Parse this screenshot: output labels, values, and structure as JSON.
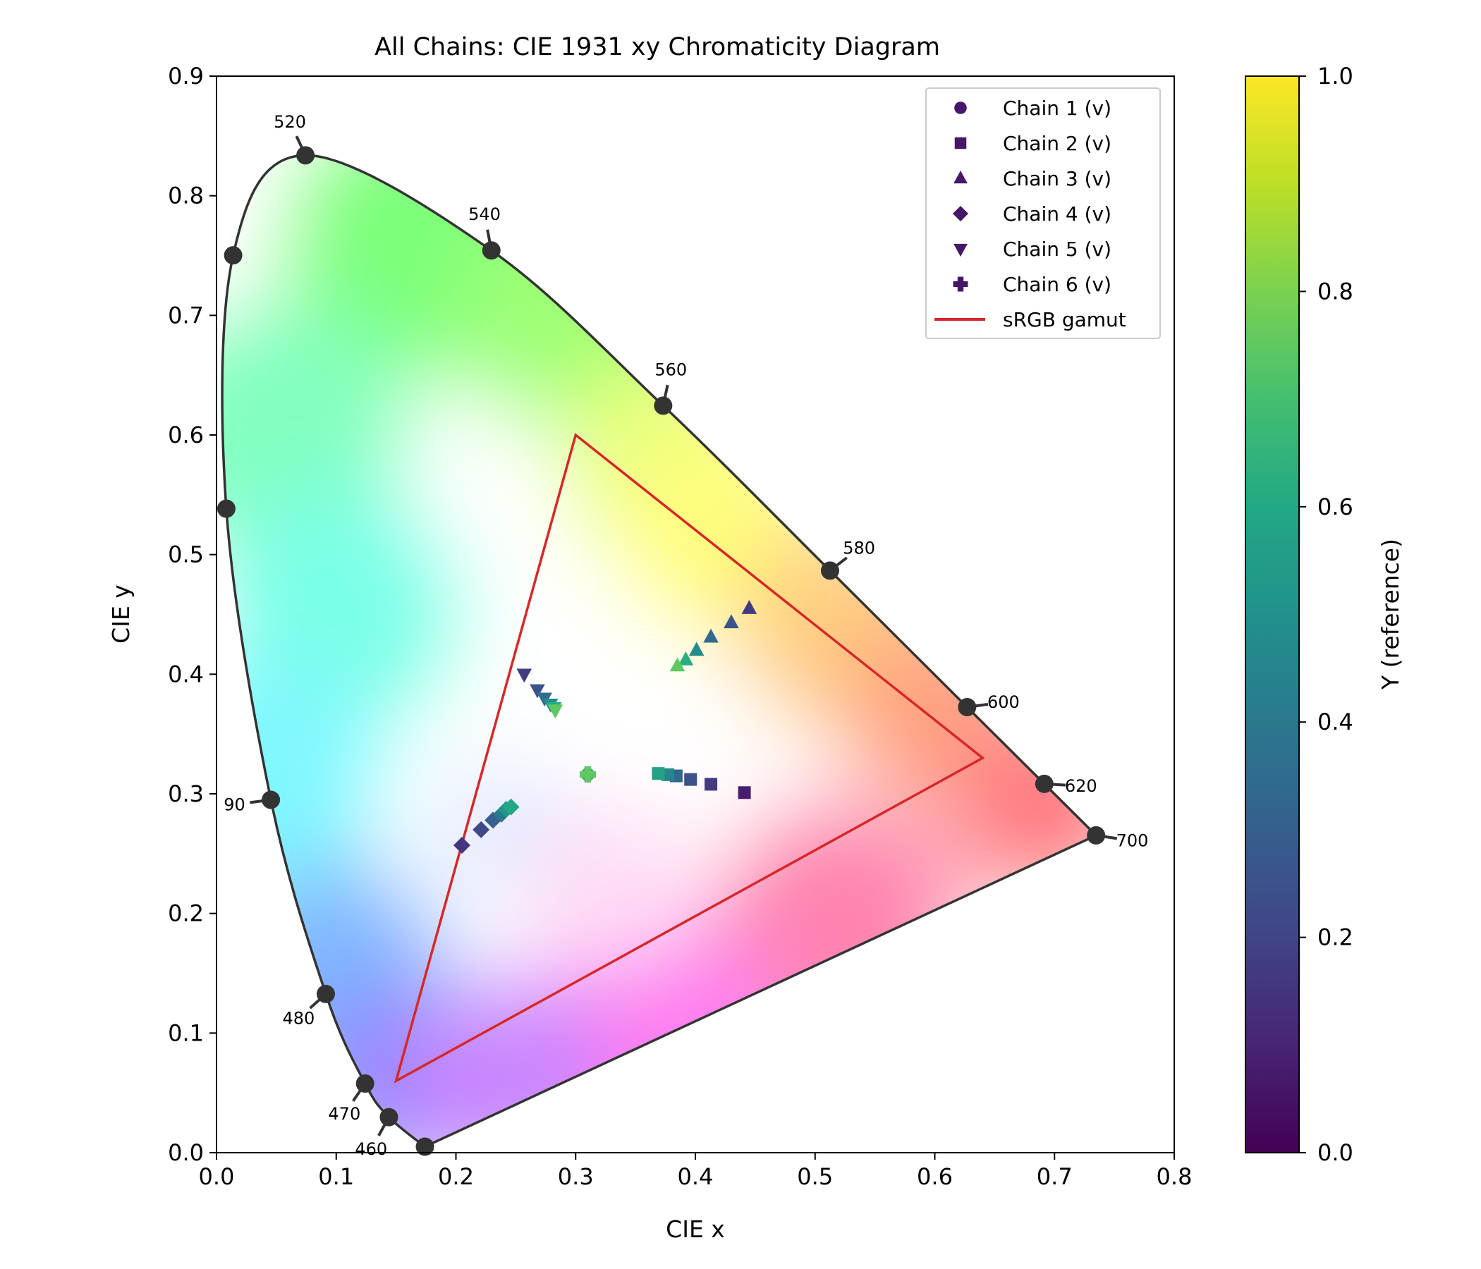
{
  "chart_data": {
    "type": "scatter",
    "title": "All Chains: CIE 1931 xy Chromaticity Diagram",
    "xlabel": "CIE x",
    "ylabel": "CIE y",
    "xlim": [
      0.0,
      0.8
    ],
    "ylim": [
      0.0,
      0.9
    ],
    "xticks": [
      "0.0",
      "0.1",
      "0.2",
      "0.3",
      "0.4",
      "0.5",
      "0.6",
      "0.7",
      "0.8"
    ],
    "yticks": [
      "0.0",
      "0.1",
      "0.2",
      "0.3",
      "0.4",
      "0.5",
      "0.6",
      "0.7",
      "0.8",
      "0.9"
    ],
    "grid": false,
    "legend_position": "top-right",
    "colorbar": {
      "label": "Y (reference)",
      "range": [
        0.0,
        1.0
      ],
      "ticks": [
        "0.0",
        "0.2",
        "0.4",
        "0.6",
        "0.8",
        "1.0"
      ],
      "colormap": "viridis"
    },
    "spectral_locus": [
      [
        0.1741,
        0.005
      ],
      [
        0.144,
        0.0297
      ],
      [
        0.1241,
        0.0578
      ],
      [
        0.0913,
        0.1327
      ],
      [
        0.0454,
        0.295
      ],
      [
        0.0082,
        0.5384
      ],
      [
        0.0139,
        0.7502
      ],
      [
        0.0743,
        0.8338
      ],
      [
        0.2296,
        0.7543
      ],
      [
        0.3731,
        0.6245
      ],
      [
        0.5125,
        0.4866
      ],
      [
        0.627,
        0.3725
      ],
      [
        0.6915,
        0.3083
      ],
      [
        0.7347,
        0.2653
      ]
    ],
    "wavelength_markers": [
      {
        "x": 0.144,
        "y": 0.0297,
        "label": "460"
      },
      {
        "x": 0.1241,
        "y": 0.0578,
        "label": "470"
      },
      {
        "x": 0.0913,
        "y": 0.1327,
        "label": "480"
      },
      {
        "x": 0.0454,
        "y": 0.295,
        "label": "90"
      },
      {
        "x": 0.0743,
        "y": 0.8338,
        "label": "520"
      },
      {
        "x": 0.2296,
        "y": 0.7543,
        "label": "540"
      },
      {
        "x": 0.3731,
        "y": 0.6245,
        "label": "560"
      },
      {
        "x": 0.5125,
        "y": 0.4866,
        "label": "580"
      },
      {
        "x": 0.627,
        "y": 0.3725,
        "label": "600"
      },
      {
        "x": 0.6915,
        "y": 0.3083,
        "label": "620"
      },
      {
        "x": 0.7347,
        "y": 0.2653,
        "label": "700"
      }
    ],
    "unlabeled_locus_markers": [
      {
        "x": 0.1741,
        "y": 0.005
      },
      {
        "x": 0.0082,
        "y": 0.5384
      },
      {
        "x": 0.0139,
        "y": 0.7502
      }
    ],
    "srgb_gamut": {
      "label": "sRGB gamut",
      "color": "#d62728",
      "points": [
        [
          0.64,
          0.33
        ],
        [
          0.3,
          0.6
        ],
        [
          0.15,
          0.06
        ]
      ]
    },
    "series": [
      {
        "name": "Chain 1 (v)",
        "marker": "circle",
        "points": [
          {
            "x": 0.3101,
            "y": 0.3162,
            "Y": 0.05
          },
          {
            "x": 0.3101,
            "y": 0.3162,
            "Y": 0.65
          }
        ]
      },
      {
        "name": "Chain 2 (v)",
        "marker": "square",
        "points": [
          {
            "x": 0.441,
            "y": 0.301,
            "Y": 0.08
          },
          {
            "x": 0.413,
            "y": 0.308,
            "Y": 0.17
          },
          {
            "x": 0.396,
            "y": 0.312,
            "Y": 0.25
          },
          {
            "x": 0.384,
            "y": 0.315,
            "Y": 0.33
          },
          {
            "x": 0.377,
            "y": 0.316,
            "Y": 0.45
          },
          {
            "x": 0.369,
            "y": 0.317,
            "Y": 0.58
          }
        ]
      },
      {
        "name": "Chain 3 (v)",
        "marker": "triangle-up",
        "points": [
          {
            "x": 0.445,
            "y": 0.455,
            "Y": 0.17
          },
          {
            "x": 0.43,
            "y": 0.443,
            "Y": 0.25
          },
          {
            "x": 0.413,
            "y": 0.431,
            "Y": 0.35
          },
          {
            "x": 0.401,
            "y": 0.42,
            "Y": 0.48
          },
          {
            "x": 0.392,
            "y": 0.412,
            "Y": 0.62
          },
          {
            "x": 0.385,
            "y": 0.407,
            "Y": 0.75
          }
        ]
      },
      {
        "name": "Chain 4 (v)",
        "marker": "diamond",
        "points": [
          {
            "x": 0.205,
            "y": 0.257,
            "Y": 0.15
          },
          {
            "x": 0.221,
            "y": 0.27,
            "Y": 0.22
          },
          {
            "x": 0.231,
            "y": 0.278,
            "Y": 0.3
          },
          {
            "x": 0.238,
            "y": 0.283,
            "Y": 0.4
          },
          {
            "x": 0.242,
            "y": 0.287,
            "Y": 0.52
          },
          {
            "x": 0.246,
            "y": 0.289,
            "Y": 0.6
          }
        ]
      },
      {
        "name": "Chain 5 (v)",
        "marker": "triangle-down",
        "points": [
          {
            "x": 0.257,
            "y": 0.4,
            "Y": 0.18
          },
          {
            "x": 0.268,
            "y": 0.387,
            "Y": 0.25
          },
          {
            "x": 0.274,
            "y": 0.38,
            "Y": 0.35
          },
          {
            "x": 0.279,
            "y": 0.375,
            "Y": 0.48
          },
          {
            "x": 0.282,
            "y": 0.372,
            "Y": 0.62
          },
          {
            "x": 0.283,
            "y": 0.37,
            "Y": 0.75
          }
        ]
      },
      {
        "name": "Chain 6 (v)",
        "marker": "plus",
        "points": [
          {
            "x": 0.3101,
            "y": 0.3162,
            "Y": 0.1
          },
          {
            "x": 0.3101,
            "y": 0.3162,
            "Y": 0.75
          }
        ]
      }
    ]
  }
}
